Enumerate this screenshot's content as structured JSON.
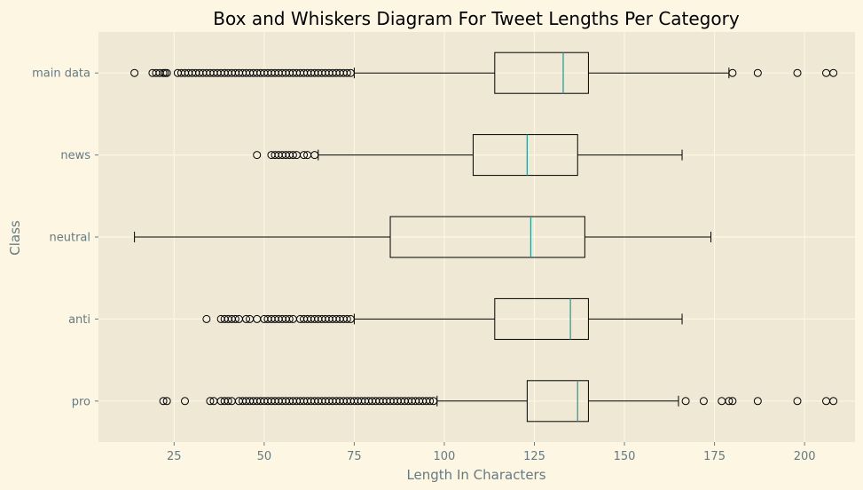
{
  "chart_data": {
    "type": "box",
    "orientation": "horizontal",
    "title": "Box and Whiskers Diagram For Tweet Lengths Per Category",
    "xlabel": "Length In Characters",
    "ylabel": "Class",
    "xlim": [
      4,
      214
    ],
    "xticks": [
      25,
      50,
      75,
      100,
      125,
      150,
      175,
      200
    ],
    "grid": true,
    "colors": {
      "figure_bg": "#fdf6e3",
      "axes_bg": "#eee8d5",
      "grid": "#fdf6e3",
      "box": "#000000",
      "median": "#2aa198",
      "text": "#657b83"
    },
    "categories": [
      "main data",
      "news",
      "neutral",
      "anti",
      "pro"
    ],
    "boxes": [
      {
        "label": "main data",
        "whisker_low": 75,
        "q1": 114,
        "median": 133,
        "q3": 140,
        "whisker_high": 179,
        "outliers": [
          14,
          19,
          20,
          21,
          22,
          22.5,
          23,
          26,
          27,
          28,
          29,
          30,
          31,
          32,
          33,
          34,
          35,
          36,
          37,
          38,
          39,
          40,
          41,
          42,
          43,
          44,
          45,
          46,
          47,
          48,
          49,
          50,
          51,
          52,
          53,
          54,
          55,
          56,
          57,
          58,
          59,
          60,
          61,
          62,
          63,
          64,
          65,
          66,
          67,
          68,
          69,
          70,
          71,
          72,
          73,
          74,
          180,
          187,
          198,
          206,
          208
        ]
      },
      {
        "label": "news",
        "whisker_low": 65,
        "q1": 108,
        "median": 123,
        "q3": 137,
        "whisker_high": 166,
        "outliers": [
          48,
          52,
          53,
          54,
          55,
          56,
          57,
          58,
          59,
          61,
          62,
          64
        ]
      },
      {
        "label": "neutral",
        "whisker_low": 14,
        "q1": 85,
        "median": 124,
        "q3": 139,
        "whisker_high": 174,
        "outliers": []
      },
      {
        "label": "anti",
        "whisker_low": 75,
        "q1": 114,
        "median": 135,
        "q3": 140,
        "whisker_high": 166,
        "outliers": [
          34,
          38,
          39,
          40,
          41,
          42,
          43,
          45,
          46,
          48,
          50,
          51,
          52,
          53,
          54,
          55,
          56,
          57,
          58,
          60,
          61,
          62,
          63,
          64,
          65,
          66,
          67,
          68,
          69,
          70,
          71,
          72,
          73,
          74
        ]
      },
      {
        "label": "pro",
        "whisker_low": 98,
        "q1": 123,
        "median": 137,
        "q3": 140,
        "whisker_high": 165,
        "outliers": [
          22,
          23,
          28,
          35,
          36,
          38,
          39,
          40,
          41,
          43,
          44,
          45,
          46,
          47,
          48,
          49,
          50,
          51,
          52,
          53,
          54,
          55,
          56,
          57,
          58,
          59,
          60,
          61,
          62,
          63,
          64,
          65,
          66,
          67,
          68,
          69,
          70,
          71,
          72,
          73,
          74,
          75,
          76,
          77,
          78,
          79,
          80,
          81,
          82,
          83,
          84,
          85,
          86,
          87,
          88,
          89,
          90,
          91,
          92,
          93,
          94,
          95,
          96,
          97,
          167,
          172,
          177,
          179,
          180,
          187,
          198,
          206,
          208
        ]
      }
    ]
  }
}
